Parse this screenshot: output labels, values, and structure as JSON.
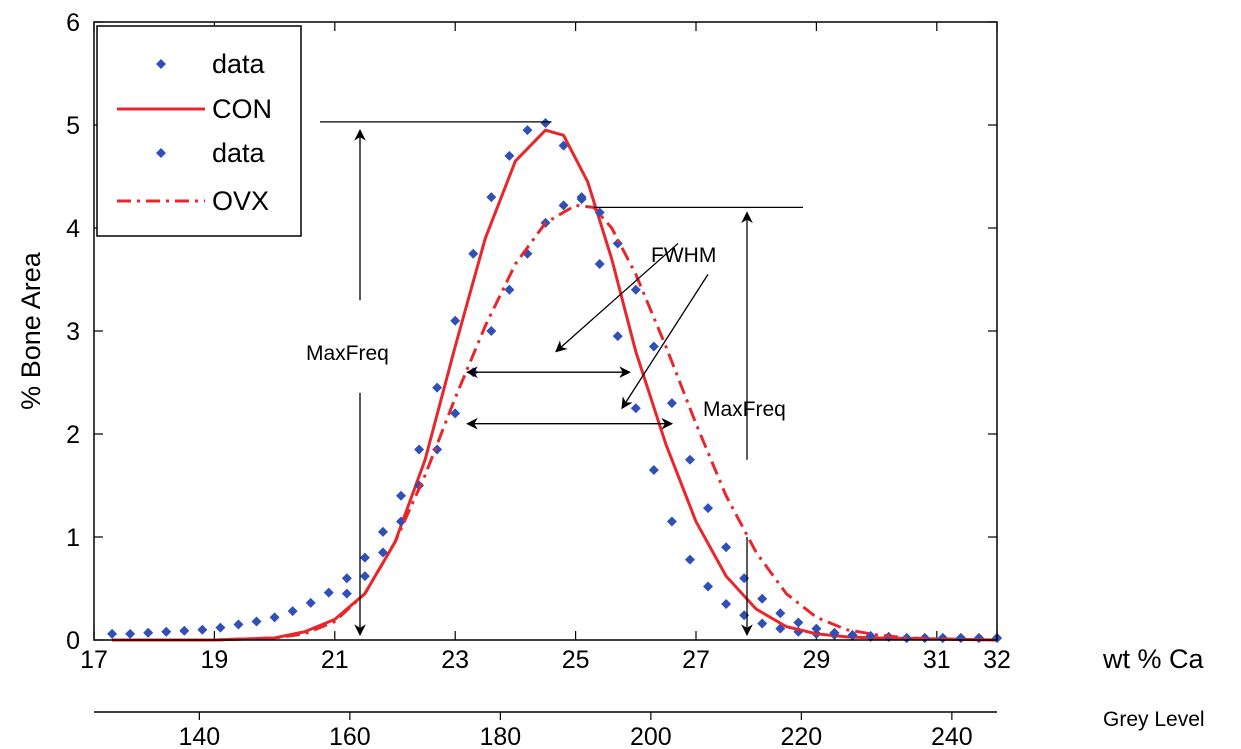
{
  "chart_data": {
    "type": "line",
    "title": "",
    "xlabel": "wt % Ca",
    "x2label": "Grey Level",
    "ylabel": "% Bone Area",
    "xlim": [
      17,
      32
    ],
    "ylim": [
      0,
      6
    ],
    "x2lim": [
      126,
      246
    ],
    "xticks": [
      17,
      19,
      21,
      23,
      25,
      27,
      29,
      31,
      32
    ],
    "yticks": [
      0,
      1,
      2,
      3,
      4,
      5,
      6
    ],
    "x2ticks": [
      140,
      160,
      180,
      200,
      220,
      240
    ],
    "legend_position": "top-left",
    "colors": {
      "data": "#3050b8",
      "con": "#e8262b",
      "ovx": "#e8262b",
      "annotation": "#000000"
    },
    "series": [
      {
        "name": "data",
        "style": "markers",
        "color": "#3050b8",
        "x": [
          17.3,
          17.6,
          17.9,
          18.2,
          18.5,
          18.8,
          19.1,
          19.4,
          19.7,
          20.0,
          20.3,
          20.6,
          20.9,
          21.2,
          21.5,
          21.8,
          22.1,
          22.4,
          22.7,
          23.0,
          23.3,
          23.6,
          23.9,
          24.2,
          24.5,
          24.8,
          25.1,
          25.4,
          25.7,
          26.0,
          26.3,
          26.6,
          26.9,
          27.2,
          27.5,
          27.8,
          28.1,
          28.4,
          28.7,
          29.0,
          29.3,
          29.6,
          29.9,
          30.2,
          30.5,
          30.8,
          31.1,
          31.4,
          31.7,
          32.0
        ],
        "y": [
          0.06,
          0.06,
          0.07,
          0.08,
          0.09,
          0.1,
          0.12,
          0.15,
          0.18,
          0.22,
          0.28,
          0.36,
          0.46,
          0.6,
          0.8,
          1.05,
          1.4,
          1.85,
          2.45,
          3.1,
          3.75,
          4.3,
          4.7,
          4.95,
          5.02,
          4.8,
          4.3,
          3.65,
          2.95,
          2.25,
          1.65,
          1.15,
          0.78,
          0.52,
          0.35,
          0.24,
          0.16,
          0.11,
          0.08,
          0.06,
          0.05,
          0.04,
          0.03,
          0.03,
          0.02,
          0.02,
          0.02,
          0.02,
          0.02,
          0.02
        ]
      },
      {
        "name": "CON",
        "style": "solid",
        "color": "#e8262b",
        "x": [
          17.3,
          18.0,
          19.0,
          20.0,
          20.5,
          21.0,
          21.5,
          22.0,
          22.5,
          23.0,
          23.5,
          24.0,
          24.5,
          24.8,
          25.2,
          25.6,
          26.0,
          26.5,
          27.0,
          27.5,
          28.0,
          28.5,
          29.0,
          29.5,
          30.0,
          31.0,
          32.0
        ],
        "y": [
          0.0,
          0.0,
          0.0,
          0.02,
          0.08,
          0.2,
          0.45,
          0.95,
          1.75,
          2.85,
          3.9,
          4.65,
          4.95,
          4.9,
          4.45,
          3.7,
          2.8,
          1.9,
          1.15,
          0.62,
          0.3,
          0.13,
          0.06,
          0.03,
          0.02,
          0.01,
          0.0
        ]
      },
      {
        "name": "data",
        "style": "markers",
        "color": "#3050b8",
        "x": [
          21.2,
          21.5,
          21.8,
          22.1,
          22.4,
          22.7,
          23.0,
          23.3,
          23.6,
          23.9,
          24.2,
          24.5,
          24.8,
          25.1,
          25.4,
          25.7,
          26.0,
          26.3,
          26.6,
          26.9,
          27.2,
          27.5,
          27.8,
          28.1,
          28.4,
          28.7,
          29.0,
          29.3,
          29.6,
          29.9,
          30.2,
          30.5,
          30.8,
          31.1,
          31.4,
          31.7,
          32.0
        ],
        "y": [
          0.45,
          0.62,
          0.85,
          1.15,
          1.5,
          1.85,
          2.2,
          2.6,
          3.0,
          3.4,
          3.75,
          4.05,
          4.22,
          4.28,
          4.15,
          3.85,
          3.4,
          2.85,
          2.3,
          1.75,
          1.28,
          0.9,
          0.6,
          0.4,
          0.26,
          0.17,
          0.11,
          0.07,
          0.05,
          0.04,
          0.03,
          0.02,
          0.02,
          0.02,
          0.02,
          0.02,
          0.02
        ]
      },
      {
        "name": "OVX",
        "style": "dash-dot",
        "color": "#e8262b",
        "x": [
          17.3,
          19.0,
          20.0,
          20.5,
          21.0,
          21.5,
          22.0,
          22.5,
          23.0,
          23.5,
          24.0,
          24.5,
          25.0,
          25.3,
          25.6,
          26.0,
          26.5,
          27.0,
          27.5,
          28.0,
          28.5,
          29.0,
          29.5,
          30.0,
          30.5,
          31.0,
          32.0
        ],
        "y": [
          0.0,
          0.0,
          0.02,
          0.06,
          0.18,
          0.45,
          0.95,
          1.6,
          2.35,
          3.05,
          3.65,
          4.05,
          4.22,
          4.2,
          4.0,
          3.55,
          2.85,
          2.1,
          1.4,
          0.85,
          0.45,
          0.22,
          0.1,
          0.05,
          0.02,
          0.01,
          0.0
        ]
      }
    ],
    "annotations": [
      "MaxFreq",
      "FWHM",
      "MaxFreq"
    ]
  }
}
